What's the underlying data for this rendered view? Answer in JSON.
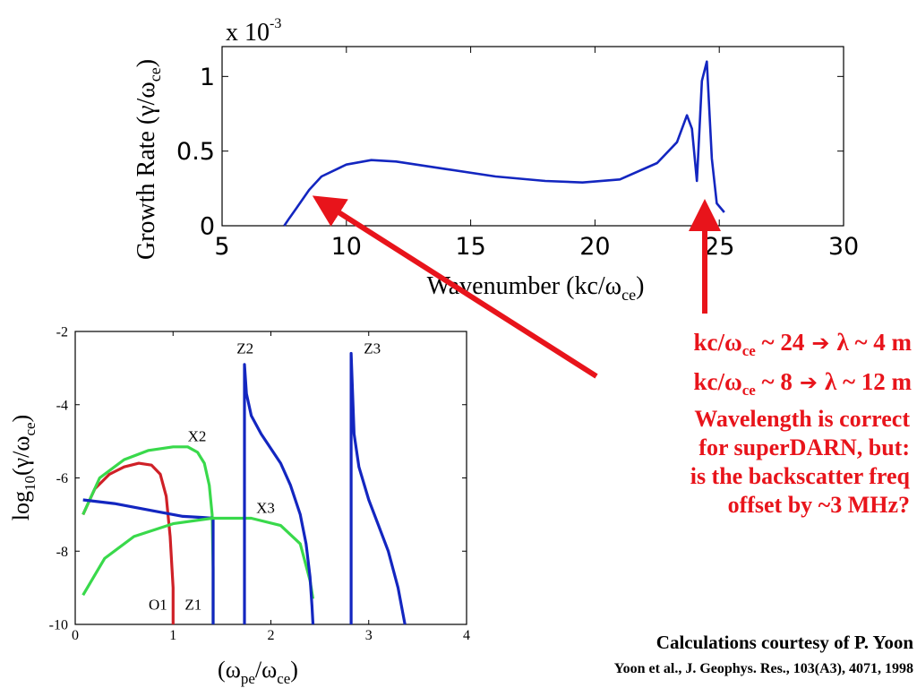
{
  "colors": {
    "red": "#e8141b",
    "blue": "#1326c0",
    "green": "#39d94b",
    "dark_red": "#cf2027"
  },
  "conversions": [
    {
      "lhs": "kc/ω",
      "sub": "ce",
      "rhs": " ~ 24",
      "arrow": "➔",
      "result": "λ ~ 4 m"
    },
    {
      "lhs": "kc/ω",
      "sub": "ce",
      "rhs": " ~ 8",
      "arrow": "➔",
      "result": "λ ~ 12 m"
    }
  ],
  "remark_lines": [
    "Wavelength is correct",
    "for superDARN, but:",
    "is the backscatter freq",
    "offset by ~3 MHz?"
  ],
  "credit": "Calculations courtesy of P. Yoon",
  "reference": "Yoon et al., J. Geophys. Res., 103(A3), 4071, 1998",
  "chart_data": [
    {
      "type": "line",
      "xlabel": "Wavenumber (kc/ω",
      "xlabel_sub": "ce",
      "xlabel_end": ")",
      "ylabel": "Growth Rate (γ/ω",
      "ylabel_sub": "ce",
      "ylabel_end": ")",
      "exponent_label": "x 10",
      "exponent_sup": "-3",
      "xlim": [
        5,
        30
      ],
      "ylim": [
        0,
        1.2
      ],
      "xticks": [
        "5",
        "10",
        "15",
        "20",
        "25",
        "30"
      ],
      "yticks": [
        "0",
        "0.5",
        "1"
      ],
      "ytick_values": [
        0,
        0.5,
        1
      ],
      "series": [
        {
          "color": "#1326c0",
          "x": [
            7.5,
            7.7,
            8.0,
            8.5,
            9.0,
            10.0,
            11.0,
            12.0,
            14.0,
            16.0,
            18.0,
            19.5,
            21.0,
            22.5,
            23.3,
            23.7,
            23.9,
            24.1,
            24.3,
            24.5,
            24.7,
            24.9,
            25.2
          ],
          "y": [
            0.0,
            0.05,
            0.12,
            0.24,
            0.33,
            0.41,
            0.44,
            0.43,
            0.38,
            0.33,
            0.3,
            0.29,
            0.31,
            0.42,
            0.56,
            0.74,
            0.65,
            0.3,
            0.97,
            1.1,
            0.45,
            0.15,
            0.09
          ]
        }
      ],
      "annotations": [
        {
          "type": "arrow",
          "target": [
            8.5,
            0.2
          ],
          "color": "#e8141b"
        },
        {
          "type": "arrow",
          "target": [
            24.5,
            0.12
          ],
          "color": "#e8141b"
        }
      ]
    },
    {
      "type": "line",
      "xlabel": "(ω",
      "xlabel_sub1": "pe",
      "xlabel_mid": "/ω",
      "xlabel_sub2": "ce",
      "xlabel_end": ")",
      "ylabel": "log",
      "ylabel_sub": "10",
      "ylabel_end": "(γ/ω",
      "ylabel_sub2": "ce",
      "ylabel_close": ")",
      "xlim": [
        0,
        4
      ],
      "ylim": [
        -10,
        -2
      ],
      "xticks": [
        "0",
        "1",
        "2",
        "3",
        "4"
      ],
      "yticks": [
        "-2",
        "-4",
        "-6",
        "-8",
        "-10"
      ],
      "ytick_values": [
        -2,
        -4,
        -6,
        -8,
        -10
      ],
      "series_labels": [
        {
          "name": "O1",
          "x": 0.75,
          "y": -9.6
        },
        {
          "name": "Z1",
          "x": 1.12,
          "y": -9.6
        },
        {
          "name": "X2",
          "x": 1.15,
          "y": -5.0
        },
        {
          "name": "X3",
          "x": 1.85,
          "y": -6.95
        },
        {
          "name": "Z2",
          "x": 1.65,
          "y": -2.6
        },
        {
          "name": "Z3",
          "x": 2.95,
          "y": -2.6
        }
      ],
      "series": [
        {
          "color": "#cf2027",
          "x": [
            0.08,
            0.2,
            0.35,
            0.5,
            0.65,
            0.78,
            0.87,
            0.93,
            0.97,
            1.0,
            1.0
          ],
          "y": [
            -7.0,
            -6.3,
            -5.9,
            -5.7,
            -5.6,
            -5.65,
            -5.9,
            -6.5,
            -7.6,
            -9.0,
            -10.0
          ]
        },
        {
          "color": "#39d94b",
          "x": [
            0.08,
            0.25,
            0.5,
            0.75,
            1.0,
            1.15,
            1.25,
            1.32,
            1.37,
            1.4,
            1.41,
            1.41
          ],
          "y": [
            -7.0,
            -6.0,
            -5.5,
            -5.25,
            -5.15,
            -5.15,
            -5.3,
            -5.6,
            -6.2,
            -7.0,
            -8.5,
            -10.0
          ]
        },
        {
          "color": "#1326c0",
          "x": [
            0.08,
            0.4,
            0.8,
            1.1,
            1.3,
            1.41,
            1.41
          ],
          "y": [
            -6.6,
            -6.7,
            -6.9,
            -7.05,
            -7.08,
            -7.1,
            -10.0
          ]
        },
        {
          "color": "#39d94b",
          "x": [
            0.08,
            0.3,
            0.6,
            1.0,
            1.4,
            1.8,
            2.1,
            2.3,
            2.4,
            2.43
          ],
          "y": [
            -9.2,
            -8.2,
            -7.6,
            -7.25,
            -7.1,
            -7.1,
            -7.3,
            -7.8,
            -8.8,
            -9.3
          ]
        },
        {
          "color": "#1326c0",
          "x": [
            1.73,
            1.73,
            1.75,
            1.8,
            1.9,
            2.0,
            2.1,
            2.2,
            2.3,
            2.36,
            2.4,
            2.42,
            2.43
          ],
          "y": [
            -10.0,
            -2.9,
            -3.7,
            -4.3,
            -4.8,
            -5.2,
            -5.6,
            -6.2,
            -7.0,
            -7.8,
            -8.7,
            -9.5,
            -10.0
          ]
        },
        {
          "color": "#1326c0",
          "x": [
            2.82,
            2.82,
            2.85,
            2.9,
            3.0,
            3.1,
            3.2,
            3.3,
            3.37
          ],
          "y": [
            -10.0,
            -2.6,
            -4.8,
            -5.7,
            -6.6,
            -7.3,
            -8.0,
            -9.0,
            -10.0
          ]
        }
      ]
    }
  ]
}
